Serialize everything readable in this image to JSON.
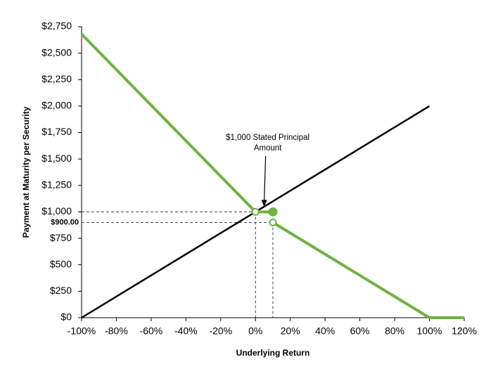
{
  "chart_data": {
    "type": "line",
    "xlabel": "Underlying Return",
    "ylabel": "Payment at Maturity per Security",
    "xlim": [
      -100,
      120
    ],
    "ylim": [
      0,
      2750
    ],
    "xticks": [
      {
        "value": -100,
        "label": "-100%"
      },
      {
        "value": -80,
        "label": "-80%"
      },
      {
        "value": -60,
        "label": "-60%"
      },
      {
        "value": -40,
        "label": "-40%"
      },
      {
        "value": -20,
        "label": "-20%"
      },
      {
        "value": 0,
        "label": "0%"
      },
      {
        "value": 20,
        "label": "20%"
      },
      {
        "value": 40,
        "label": "40%"
      },
      {
        "value": 60,
        "label": "60%"
      },
      {
        "value": 80,
        "label": "80%"
      },
      {
        "value": 100,
        "label": "100%"
      },
      {
        "value": 120,
        "label": "120%"
      }
    ],
    "yticks": [
      {
        "value": 0,
        "label": "$0"
      },
      {
        "value": 250,
        "label": "$250"
      },
      {
        "value": 500,
        "label": "$500"
      },
      {
        "value": 750,
        "label": "$750"
      },
      {
        "value": 1000,
        "label": "$1,000"
      },
      {
        "value": 1250,
        "label": "$1,250"
      },
      {
        "value": 1500,
        "label": "$1,500"
      },
      {
        "value": 1750,
        "label": "$1,750"
      },
      {
        "value": 2000,
        "label": "$2,000"
      },
      {
        "value": 2250,
        "label": "$2,250"
      },
      {
        "value": 2500,
        "label": "$2,500"
      },
      {
        "value": 2750,
        "label": "$2,750"
      }
    ],
    "extra_ytick": {
      "value": 900,
      "label": "$900.00"
    },
    "grid": false,
    "series": [
      {
        "color": "#000000",
        "x": [
          -100,
          100
        ],
        "values": [
          0,
          2000
        ]
      },
      {
        "color": "#6db33f",
        "x": [
          -100,
          0,
          10,
          null,
          10,
          100,
          120
        ],
        "values": [
          2680,
          1000,
          1000,
          null,
          900,
          0,
          0
        ]
      }
    ],
    "markers": [
      {
        "x": 0,
        "y": 1000,
        "filled": false
      },
      {
        "x": 10,
        "y": 1000,
        "filled": true
      },
      {
        "x": 10,
        "y": 900,
        "filled": false
      }
    ],
    "marker_color": "#6db33f",
    "dashed_guides": true,
    "annotation": {
      "lines": [
        "$1,000 Stated Principal",
        "Amount"
      ],
      "x": 5,
      "y": 1000
    }
  }
}
